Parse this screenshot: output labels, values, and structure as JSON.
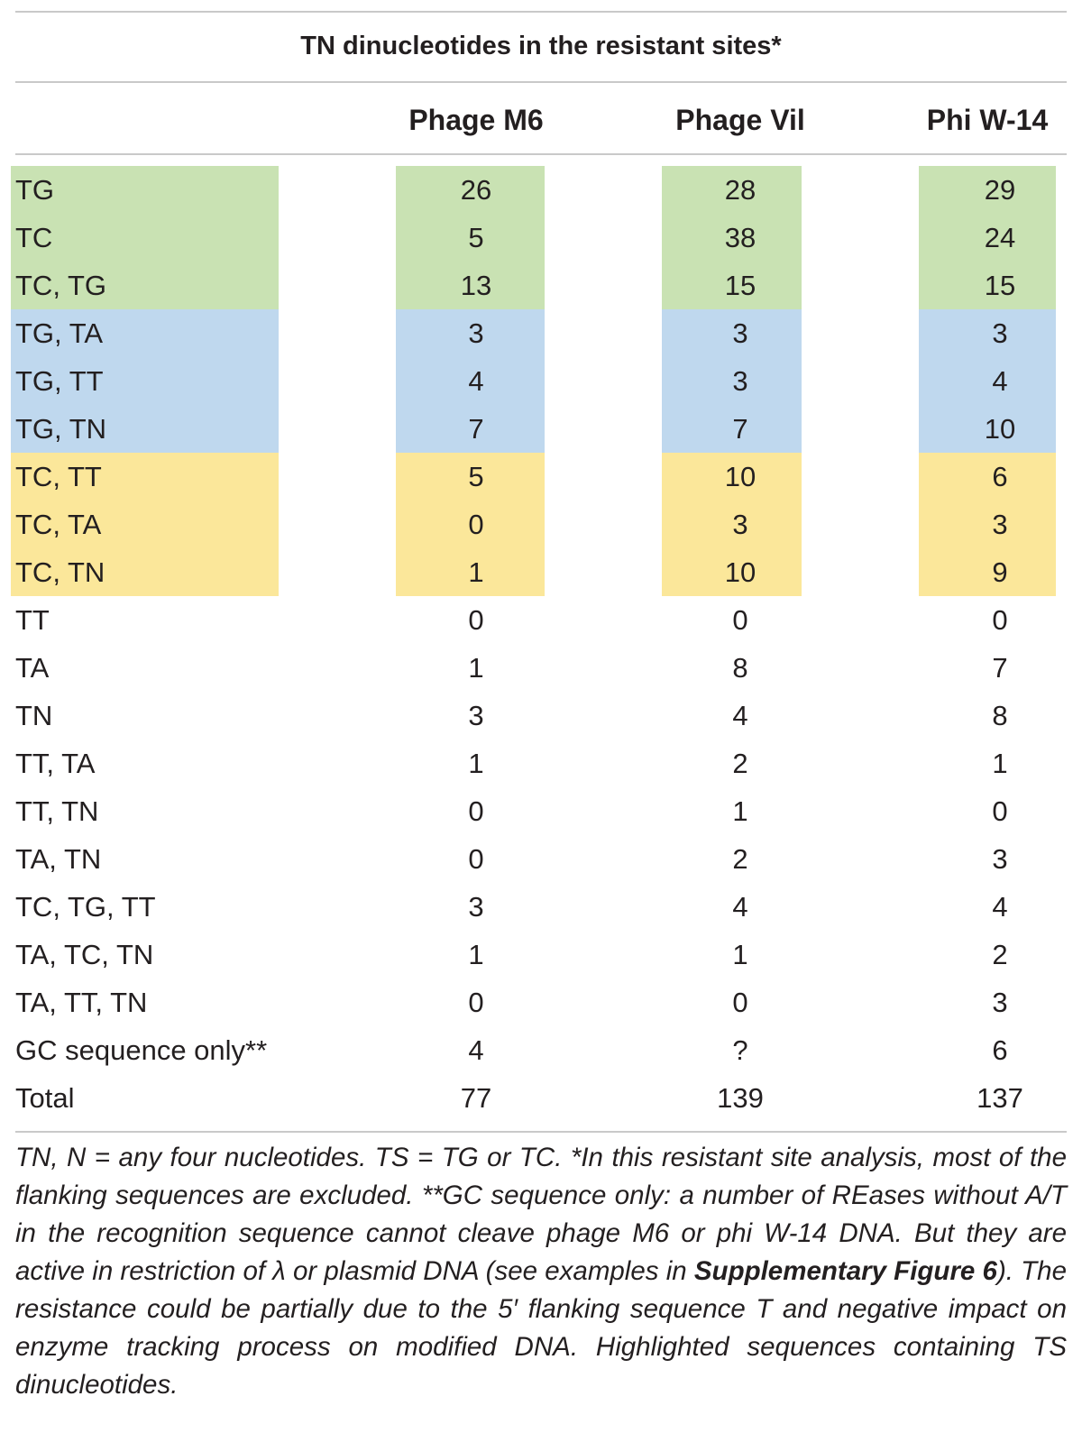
{
  "table": {
    "title": "TN dinucleotides in the resistant sites*",
    "headers": [
      "",
      "Phage M6",
      "Phage Vil",
      "Phi W-14"
    ],
    "colors": {
      "green": "#c9e2b3",
      "blue": "#bfd8ee",
      "yellow": "#fbe79a"
    },
    "rows": [
      {
        "label": "TG",
        "values": [
          "26",
          "28",
          "29"
        ],
        "highlight": "green"
      },
      {
        "label": "TC",
        "values": [
          "5",
          "38",
          "24"
        ],
        "highlight": "green"
      },
      {
        "label": "TC, TG",
        "values": [
          "13",
          "15",
          "15"
        ],
        "highlight": "green"
      },
      {
        "label": "TG, TA",
        "values": [
          "3",
          "3",
          "3"
        ],
        "highlight": "blue"
      },
      {
        "label": "TG, TT",
        "values": [
          "4",
          "3",
          "4"
        ],
        "highlight": "blue"
      },
      {
        "label": "TG, TN",
        "values": [
          "7",
          "7",
          "10"
        ],
        "highlight": "blue"
      },
      {
        "label": "TC, TT",
        "values": [
          "5",
          "10",
          "6"
        ],
        "highlight": "yellow"
      },
      {
        "label": "TC, TA",
        "values": [
          "0",
          "3",
          "3"
        ],
        "highlight": "yellow"
      },
      {
        "label": "TC, TN",
        "values": [
          "1",
          "10",
          "9"
        ],
        "highlight": "yellow"
      },
      {
        "label": "TT",
        "values": [
          "0",
          "0",
          "0"
        ],
        "highlight": "none"
      },
      {
        "label": "TA",
        "values": [
          "1",
          "8",
          "7"
        ],
        "highlight": "none"
      },
      {
        "label": "TN",
        "values": [
          "3",
          "4",
          "8"
        ],
        "highlight": "none"
      },
      {
        "label": "TT, TA",
        "values": [
          "1",
          "2",
          "1"
        ],
        "highlight": "none"
      },
      {
        "label": "TT, TN",
        "values": [
          "0",
          "1",
          "0"
        ],
        "highlight": "none"
      },
      {
        "label": "TA, TN",
        "values": [
          "0",
          "2",
          "3"
        ],
        "highlight": "none"
      },
      {
        "label": "TC, TG, TT",
        "values": [
          "3",
          "4",
          "4"
        ],
        "highlight": "none"
      },
      {
        "label": "TA, TC, TN",
        "values": [
          "1",
          "1",
          "2"
        ],
        "highlight": "none"
      },
      {
        "label": "TA, TT, TN",
        "values": [
          "0",
          "0",
          "3"
        ],
        "highlight": "none"
      },
      {
        "label": "GC sequence only**",
        "values": [
          "4",
          "?",
          "6"
        ],
        "highlight": "none"
      },
      {
        "label": "Total",
        "values": [
          "77",
          "139",
          "137"
        ],
        "highlight": "none"
      }
    ]
  },
  "footnote": {
    "part1": "TN, N = any four nucleotides. TS = TG or TC. *In this resistant site analysis, most of the flanking sequences are excluded. **GC sequence only: a number of REases without A/T in the recognition sequence cannot cleave phage M6 or phi W-14 DNA. But they are active in restriction of λ or plasmid DNA (see examples in ",
    "link": "Supplementary Figure 6",
    "part2": "). The resistance could be partially due to the 5′ flanking sequence T and negative impact on enzyme tracking process on modified DNA. Highlighted sequences containing TS dinucleotides."
  }
}
